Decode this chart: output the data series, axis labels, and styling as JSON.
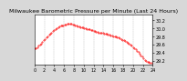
{
  "title": "Milwaukee Barometric Pressure per Minute (Last 24 Hours)",
  "background_color": "#d8d8d8",
  "plot_background": "#ffffff",
  "line_color": "#ff0000",
  "marker": ".",
  "markersize": 0.8,
  "yticks": [
    29.2,
    29.4,
    29.6,
    29.8,
    30.0,
    30.2
  ],
  "ylim": [
    29.1,
    30.35
  ],
  "xlim": [
    0,
    1440
  ],
  "xtick_positions": [
    0,
    120,
    240,
    360,
    480,
    600,
    720,
    840,
    960,
    1080,
    1200,
    1320,
    1440
  ],
  "xtick_labels": [
    "0",
    "2",
    "4",
    "6",
    "8",
    "10",
    "12",
    "14",
    "16",
    "18",
    "20",
    "22",
    "24"
  ],
  "grid_color": "#aaaaaa",
  "title_fontsize": 4.5,
  "tick_fontsize": 3.5,
  "pressure_data": [
    29.5,
    29.52,
    29.54,
    29.57,
    29.6,
    29.63,
    29.66,
    29.7,
    29.74,
    29.77,
    29.8,
    29.84,
    29.87,
    29.9,
    29.93,
    29.95,
    29.97,
    30.0,
    30.02,
    30.04,
    30.06,
    30.07,
    30.08,
    30.09,
    30.1,
    30.11,
    30.12,
    30.12,
    30.11,
    30.1,
    30.09,
    30.07,
    30.06,
    30.05,
    30.04,
    30.03,
    30.03,
    30.02,
    30.01,
    30.0,
    29.99,
    29.98,
    29.97,
    29.96,
    29.95,
    29.94,
    29.93,
    29.92,
    29.91,
    29.9,
    29.9,
    29.89,
    29.88,
    29.87,
    29.87,
    29.86,
    29.85,
    29.84,
    29.83,
    29.82,
    29.81,
    29.8,
    29.79,
    29.78,
    29.77,
    29.76,
    29.74,
    29.72,
    29.7,
    29.68,
    29.66,
    29.64,
    29.62,
    29.59,
    29.57,
    29.54,
    29.51,
    29.48,
    29.45,
    29.42,
    29.38,
    29.34,
    29.3,
    29.26,
    29.22,
    29.2,
    29.18,
    29.17,
    29.15,
    29.14
  ],
  "x_data_minutes": [
    0,
    16,
    32,
    48,
    64,
    80,
    96,
    112,
    128,
    144,
    160,
    176,
    192,
    208,
    224,
    240,
    256,
    272,
    288,
    304,
    320,
    336,
    352,
    368,
    384,
    400,
    416,
    432,
    448,
    464,
    480,
    496,
    512,
    528,
    544,
    560,
    576,
    592,
    608,
    624,
    640,
    656,
    672,
    688,
    704,
    720,
    736,
    752,
    768,
    784,
    800,
    816,
    832,
    848,
    864,
    880,
    896,
    912,
    928,
    944,
    960,
    976,
    992,
    1008,
    1024,
    1040,
    1056,
    1072,
    1088,
    1104,
    1120,
    1136,
    1152,
    1168,
    1184,
    1200,
    1216,
    1232,
    1248,
    1264,
    1280,
    1296,
    1312,
    1328,
    1344,
    1360,
    1376,
    1392,
    1408,
    1424
  ]
}
